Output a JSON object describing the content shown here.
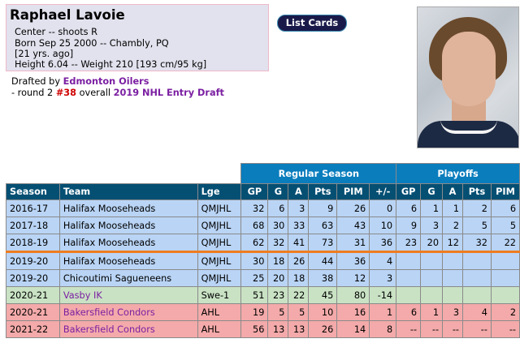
{
  "player": {
    "name": "Raphael Lavoie",
    "position_line": "Center -- shoots R",
    "born_line": "Born Sep 25 2000 -- Chambly, PQ",
    "age_line": "[21 yrs. ago]",
    "size_line": "Height 6.04 -- Weight 210 [193 cm/95 kg]"
  },
  "draft": {
    "prefix": "Drafted by ",
    "team": "Edmonton Oilers",
    "round_text": "- round 2 ",
    "pick": "#38",
    "overall_text": " overall ",
    "draft_name": "2019 NHL Entry Draft"
  },
  "buttons": {
    "list_cards": "List Cards"
  },
  "photo": {
    "alt": "player-headshot"
  },
  "table": {
    "group_headers": {
      "regular": "Regular Season",
      "playoffs": "Playoffs"
    },
    "columns": [
      "Season",
      "Team",
      "Lge",
      "GP",
      "G",
      "A",
      "Pts",
      "PIM",
      "+/-",
      "GP",
      "G",
      "A",
      "Pts",
      "PIM"
    ],
    "rows": [
      {
        "season": "2016-17",
        "team": "Halifax Mooseheads",
        "lge": "QMJHL",
        "gp": "32",
        "g": "6",
        "a": "3",
        "pts": "9",
        "pim": "26",
        "pm": "0",
        "pgp": "6",
        "pg": "1",
        "pa": "1",
        "ppts": "2",
        "ppim": "6"
      },
      {
        "season": "2017-18",
        "team": "Halifax Mooseheads",
        "lge": "QMJHL",
        "gp": "68",
        "g": "30",
        "a": "33",
        "pts": "63",
        "pim": "43",
        "pm": "10",
        "pgp": "9",
        "pg": "3",
        "pa": "2",
        "ppts": "5",
        "ppim": "5"
      },
      {
        "season": "2018-19",
        "team": "Halifax Mooseheads",
        "lge": "QMJHL",
        "gp": "62",
        "g": "32",
        "a": "41",
        "pts": "73",
        "pim": "31",
        "pm": "36",
        "pgp": "23",
        "pg": "20",
        "pa": "12",
        "ppts": "32",
        "ppim": "22"
      },
      {
        "season": "2019-20",
        "team": "Halifax Mooseheads",
        "lge": "QMJHL",
        "gp": "30",
        "g": "18",
        "a": "26",
        "pts": "44",
        "pim": "36",
        "pm": "4",
        "pgp": "",
        "pg": "",
        "pa": "",
        "ppts": "",
        "ppim": ""
      },
      {
        "season": "2019-20",
        "team": "Chicoutimi Sagueneens",
        "lge": "QMJHL",
        "gp": "25",
        "g": "20",
        "a": "18",
        "pts": "38",
        "pim": "12",
        "pm": "3",
        "pgp": "",
        "pg": "",
        "pa": "",
        "ppts": "",
        "ppim": ""
      },
      {
        "season": "2020-21",
        "team": "Vasby IK",
        "lge": "Swe-1",
        "gp": "51",
        "g": "23",
        "a": "22",
        "pts": "45",
        "pim": "80",
        "pm": "-14",
        "pgp": "",
        "pg": "",
        "pa": "",
        "ppts": "",
        "ppim": ""
      },
      {
        "season": "2020-21",
        "team": "Bakersfield Condors",
        "lge": "AHL",
        "gp": "19",
        "g": "5",
        "a": "5",
        "pts": "10",
        "pim": "16",
        "pm": "1",
        "pgp": "6",
        "pg": "1",
        "pa": "3",
        "ppts": "4",
        "ppim": "2"
      },
      {
        "season": "2021-22",
        "team": "Bakersfield Condors",
        "lge": "AHL",
        "gp": "56",
        "g": "13",
        "a": "13",
        "pts": "26",
        "pim": "14",
        "pm": "8",
        "pgp": "--",
        "pg": "--",
        "pa": "--",
        "ppts": "--",
        "ppim": "--"
      }
    ]
  },
  "colors": {
    "header_dark": "#054f73",
    "header_group": "#0a7dbd",
    "qmjhl_row": "#b9d4f5",
    "swe_row": "#c9e2c4",
    "ahl_row": "#f4aaaa",
    "link_purple": "#7b1fa2",
    "separator_orange": "#ef7d20"
  }
}
